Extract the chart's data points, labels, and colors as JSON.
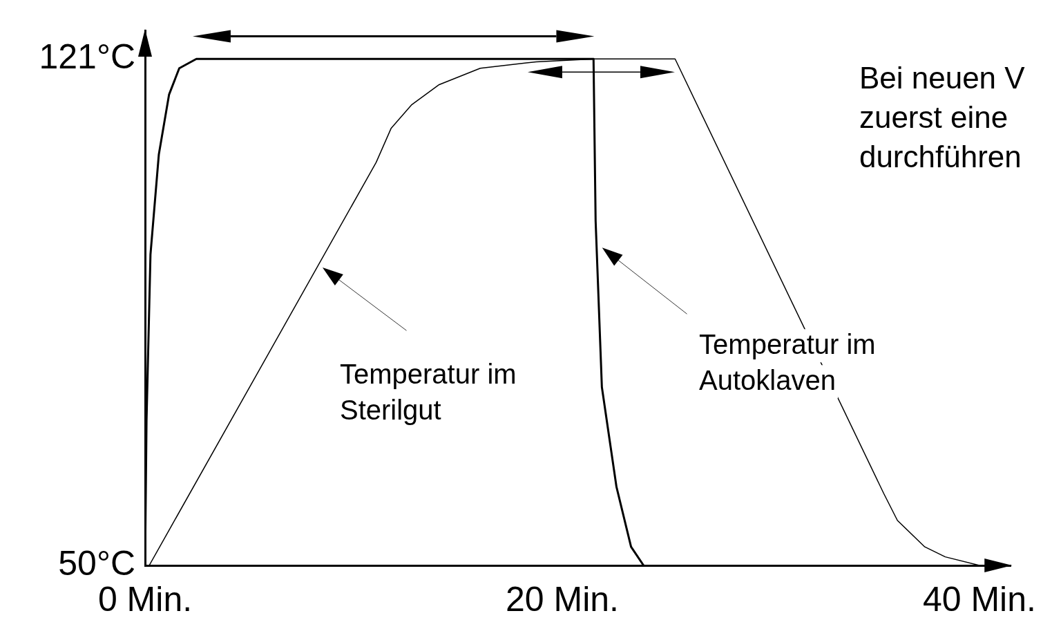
{
  "chart_data": {
    "type": "line",
    "xlim": [
      0,
      41.5
    ],
    "ylim": [
      50,
      125
    ],
    "xticks": [
      {
        "value": 0,
        "label": "0 Min."
      },
      {
        "value": 20,
        "label": "20 Min."
      },
      {
        "value": 40,
        "label": "40 Min."
      }
    ],
    "yticks": [
      {
        "value": 50,
        "label": "50°C"
      },
      {
        "value": 121,
        "label": "121°C"
      }
    ],
    "grid": false,
    "legend": false,
    "marker": "none",
    "line_style": "solid",
    "series": [
      {
        "color": "#000000",
        "x": [
          0,
          0.07,
          0.26,
          0.66,
          1.15,
          1.64,
          2.46,
          21.5,
          21.6,
          21.9,
          22.6,
          23.3,
          23.9
        ],
        "values": [
          50,
          70.3,
          93.6,
          107.6,
          116,
          119.7,
          121,
          121,
          98.3,
          75,
          61,
          52.6,
          50
        ]
      },
      {
        "color": "#000000",
        "x": [
          0.2,
          11.08,
          11.8,
          12.79,
          14.1,
          16.07,
          18.75,
          21.54,
          25.41,
          35.41,
          36.07,
          37.38,
          38.36,
          40
        ],
        "values": [
          50,
          106.5,
          111.3,
          114.6,
          117.4,
          119.7,
          120.6,
          121,
          121,
          60.1,
          56.3,
          52.6,
          51.2,
          50
        ]
      }
    ],
    "annotations": [
      "Temperatur im\nSterilgut",
      "Temperatur im\nAutoklaven",
      "Bei neuen V\nzuerst eine\ndurchführen"
    ]
  }
}
